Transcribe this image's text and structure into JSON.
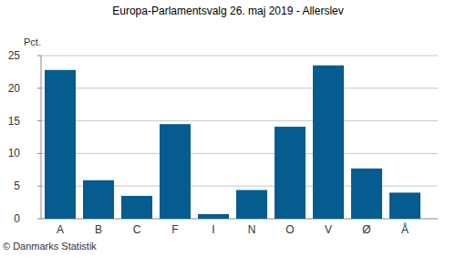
{
  "chart_data": {
    "type": "bar",
    "title": "Europa-Parlamentsvalg 26. maj 2019 - Allerslev",
    "y_label": "Pct.",
    "footer": "© Danmarks Statistik",
    "categories": [
      "A",
      "B",
      "C",
      "F",
      "I",
      "N",
      "O",
      "V",
      "Ø",
      "Å"
    ],
    "values": [
      22.8,
      5.9,
      3.5,
      14.5,
      0.7,
      4.4,
      14.1,
      23.5,
      7.7,
      4.0
    ],
    "color": "#055c8e",
    "ylim": [
      0,
      25
    ],
    "yticks": [
      0,
      5,
      10,
      15,
      20,
      25
    ],
    "grid": true
  }
}
